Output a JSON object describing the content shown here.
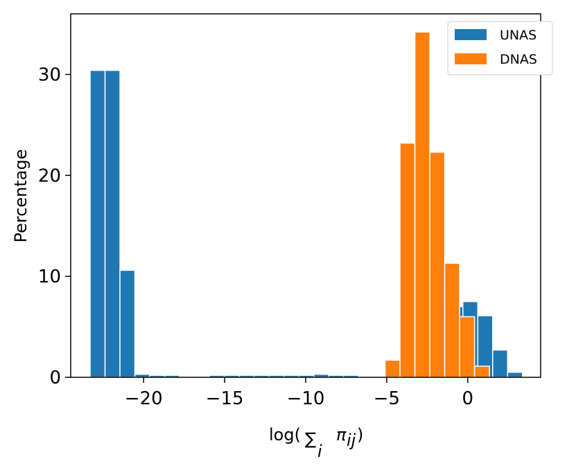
{
  "chart_data": {
    "type": "bar",
    "xlabel_main": "log(",
    "xlabel_sum": "∑",
    "xlabel_sub": "i",
    "xlabel_term": "π",
    "xlabel_term_sub": "ij",
    "xlabel_close": ")",
    "ylabel": "Percentage",
    "xlim": [
      -24.5,
      4.5
    ],
    "ylim": [
      0,
      36
    ],
    "xticks": [
      -20,
      -15,
      -10,
      -5,
      0
    ],
    "xtick_labels": [
      "−20",
      "−15",
      "−10",
      "−5",
      "0"
    ],
    "yticks": [
      0,
      10,
      20,
      30
    ],
    "ytick_labels": [
      "0",
      "10",
      "20",
      "30"
    ],
    "grid": false,
    "legend_position": "top-right",
    "series": [
      {
        "name": "UNAS",
        "color": "#1f77b4",
        "bin_width": 0.92,
        "bins": [
          {
            "x0": -23.3,
            "value": 30.4
          },
          {
            "x0": -22.38,
            "value": 30.4
          },
          {
            "x0": -21.46,
            "value": 10.6
          },
          {
            "x0": -20.54,
            "value": 0.3
          },
          {
            "x0": -19.62,
            "value": 0.2
          },
          {
            "x0": -18.7,
            "value": 0.2
          },
          {
            "x0": -17.78,
            "value": 0.1
          },
          {
            "x0": -16.86,
            "value": 0.1
          },
          {
            "x0": -15.94,
            "value": 0.2
          },
          {
            "x0": -15.02,
            "value": 0.2
          },
          {
            "x0": -14.1,
            "value": 0.2
          },
          {
            "x0": -13.18,
            "value": 0.2
          },
          {
            "x0": -12.26,
            "value": 0.2
          },
          {
            "x0": -11.34,
            "value": 0.2
          },
          {
            "x0": -10.42,
            "value": 0.2
          },
          {
            "x0": -9.5,
            "value": 0.3
          },
          {
            "x0": -8.58,
            "value": 0.2
          },
          {
            "x0": -7.66,
            "value": 0.2
          },
          {
            "x0": -6.74,
            "value": 0.1
          },
          {
            "x0": -5.82,
            "value": 0.1
          },
          {
            "x0": -4.9,
            "value": 0.3
          },
          {
            "x0": -3.98,
            "value": 0.3
          },
          {
            "x0": -3.06,
            "value": 0.3
          },
          {
            "x0": -2.14,
            "value": 0.3
          },
          {
            "x0": -1.22,
            "value": 7.0
          },
          {
            "x0": -0.3,
            "value": 7.5
          },
          {
            "x0": 0.62,
            "value": 6.1
          },
          {
            "x0": 1.54,
            "value": 2.7
          },
          {
            "x0": 2.46,
            "value": 0.5
          }
        ]
      },
      {
        "name": "DNAS",
        "color": "#ff7f0e",
        "bin_width": 0.92,
        "bins": [
          {
            "x0": -5.1,
            "value": 1.7
          },
          {
            "x0": -4.18,
            "value": 23.2
          },
          {
            "x0": -3.26,
            "value": 34.2
          },
          {
            "x0": -2.34,
            "value": 22.3
          },
          {
            "x0": -1.42,
            "value": 11.3
          },
          {
            "x0": -0.5,
            "value": 6.0
          },
          {
            "x0": 0.42,
            "value": 1.1
          }
        ]
      }
    ]
  }
}
